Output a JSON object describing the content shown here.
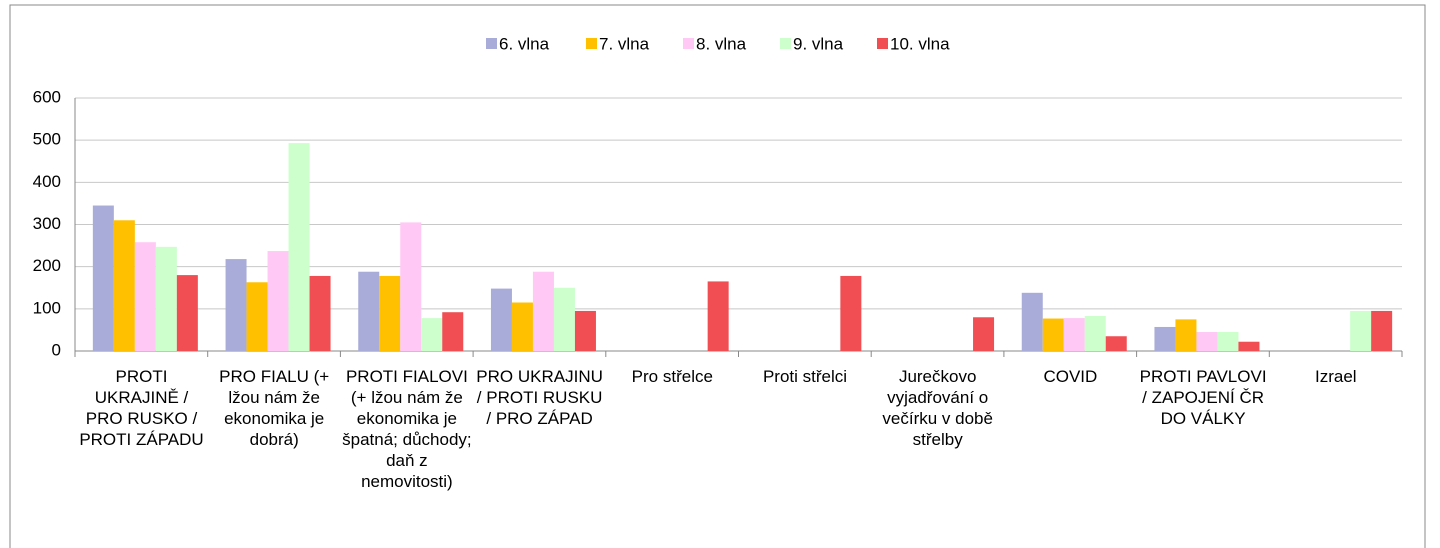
{
  "chart_data": {
    "type": "bar",
    "categories": [
      "PROTI UKRAJINĚ / PRO RUSKO / PROTI ZÁPADU",
      "PRO FIALU (+ lžou nám že ekonomika je dobrá)",
      "PROTI FIALOVI (+ lžou nám že ekonomika je špatná; důchody; daň z nemovitosti)",
      "PRO UKRAJINU / PROTI RUSKU / PRO ZÁPAD",
      "Pro střelce",
      "Proti střelci",
      "Jurečkovo vyjadřování o večírku v době střelby",
      "COVID",
      "PROTI PAVLOVI / ZAPOJENÍ ČR DO VÁLKY",
      "Izrael"
    ],
    "series": [
      {
        "name": "6. vlna",
        "color": "#a9acd9",
        "values": [
          345,
          218,
          188,
          148,
          null,
          null,
          null,
          138,
          57,
          null
        ]
      },
      {
        "name": "7. vlna",
        "color": "#ffc000",
        "values": [
          310,
          163,
          178,
          115,
          null,
          null,
          null,
          77,
          75,
          null
        ]
      },
      {
        "name": "8. vlna",
        "color": "#ffc8f5",
        "values": [
          258,
          237,
          305,
          188,
          null,
          null,
          null,
          78,
          45,
          null
        ]
      },
      {
        "name": "9. vlna",
        "color": "#ccffcc",
        "values": [
          247,
          493,
          78,
          150,
          null,
          null,
          null,
          83,
          45,
          95
        ]
      },
      {
        "name": "10. vlna",
        "color": "#f04e53",
        "values": [
          180,
          178,
          92,
          95,
          165,
          178,
          80,
          35,
          22,
          95
        ]
      }
    ],
    "ylim": [
      0,
      600
    ],
    "yticks": [
      0,
      100,
      200,
      300,
      400,
      500,
      600
    ],
    "grid": true,
    "legend": "top"
  }
}
